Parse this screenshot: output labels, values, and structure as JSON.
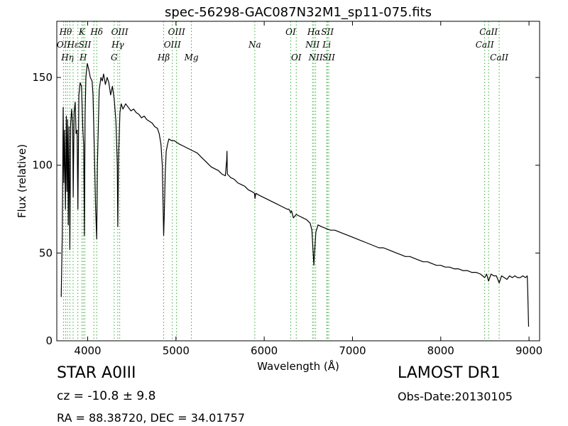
{
  "chart_data": {
    "type": "line",
    "title": "spec-56298-GAC087N32M1_sp11-075.fits",
    "xlabel": "Wavelength (Å)",
    "ylabel": "Flux (relative)",
    "xlim": [
      3650,
      9120
    ],
    "ylim": [
      0,
      182
    ],
    "xticks": [
      4000,
      5000,
      6000,
      7000,
      8000,
      9000
    ],
    "yticks": [
      0,
      50,
      100,
      150
    ],
    "grid": false,
    "line_color": "#000000",
    "marker_color": "#33aa33",
    "series": [
      {
        "values": [
          [
            3700,
            25
          ],
          [
            3712,
            60
          ],
          [
            3722,
            133
          ],
          [
            3730,
            90
          ],
          [
            3738,
            120
          ],
          [
            3748,
            75
          ],
          [
            3758,
            128
          ],
          [
            3765,
            85
          ],
          [
            3772,
            126
          ],
          [
            3780,
            66
          ],
          [
            3788,
            122
          ],
          [
            3798,
            52
          ],
          [
            3808,
            124
          ],
          [
            3818,
            132
          ],
          [
            3830,
            122
          ],
          [
            3836,
            82
          ],
          [
            3846,
            130
          ],
          [
            3858,
            136
          ],
          [
            3868,
            118
          ],
          [
            3880,
            120
          ],
          [
            3889,
            75
          ],
          [
            3900,
            140
          ],
          [
            3915,
            147
          ],
          [
            3930,
            145
          ],
          [
            3945,
            120
          ],
          [
            3955,
            112
          ],
          [
            3963,
            60
          ],
          [
            3970,
            128
          ],
          [
            3980,
            150
          ],
          [
            3995,
            158
          ],
          [
            4010,
            155
          ],
          [
            4030,
            150
          ],
          [
            4050,
            148
          ],
          [
            4060,
            140
          ],
          [
            4075,
            110
          ],
          [
            4090,
            75
          ],
          [
            4102,
            58
          ],
          [
            4110,
            100
          ],
          [
            4130,
            143
          ],
          [
            4150,
            150
          ],
          [
            4165,
            148
          ],
          [
            4180,
            152
          ],
          [
            4200,
            146
          ],
          [
            4220,
            150
          ],
          [
            4240,
            147
          ],
          [
            4260,
            140
          ],
          [
            4280,
            145
          ],
          [
            4300,
            138
          ],
          [
            4320,
            125
          ],
          [
            4335,
            100
          ],
          [
            4341,
            65
          ],
          [
            4350,
            105
          ],
          [
            4365,
            130
          ],
          [
            4380,
            135
          ],
          [
            4400,
            132
          ],
          [
            4430,
            135
          ],
          [
            4460,
            133
          ],
          [
            4490,
            131
          ],
          [
            4520,
            132
          ],
          [
            4550,
            130
          ],
          [
            4580,
            129
          ],
          [
            4610,
            127
          ],
          [
            4640,
            128
          ],
          [
            4670,
            126
          ],
          [
            4700,
            125
          ],
          [
            4730,
            124
          ],
          [
            4760,
            122
          ],
          [
            4790,
            121
          ],
          [
            4810,
            118
          ],
          [
            4830,
            112
          ],
          [
            4845,
            100
          ],
          [
            4855,
            75
          ],
          [
            4861,
            60
          ],
          [
            4868,
            72
          ],
          [
            4878,
            95
          ],
          [
            4890,
            108
          ],
          [
            4905,
            112
          ],
          [
            4920,
            115
          ],
          [
            4950,
            114
          ],
          [
            4980,
            114
          ],
          [
            5010,
            113
          ],
          [
            5040,
            112
          ],
          [
            5080,
            111
          ],
          [
            5120,
            110
          ],
          [
            5160,
            109
          ],
          [
            5200,
            108
          ],
          [
            5240,
            107
          ],
          [
            5280,
            105
          ],
          [
            5320,
            103
          ],
          [
            5360,
            101
          ],
          [
            5400,
            99
          ],
          [
            5440,
            98
          ],
          [
            5480,
            97
          ],
          [
            5520,
            95
          ],
          [
            5560,
            94
          ],
          [
            5575,
            103
          ],
          [
            5578,
            108
          ],
          [
            5582,
            95
          ],
          [
            5620,
            93
          ],
          [
            5660,
            92
          ],
          [
            5700,
            90
          ],
          [
            5740,
            89
          ],
          [
            5780,
            88
          ],
          [
            5820,
            86
          ],
          [
            5860,
            85
          ],
          [
            5890,
            84
          ],
          [
            5895,
            81
          ],
          [
            5905,
            84
          ],
          [
            5940,
            83
          ],
          [
            5980,
            82
          ],
          [
            6020,
            81
          ],
          [
            6060,
            80
          ],
          [
            6100,
            79
          ],
          [
            6140,
            78
          ],
          [
            6180,
            77
          ],
          [
            6220,
            76
          ],
          [
            6260,
            75
          ],
          [
            6280,
            75
          ],
          [
            6300,
            73
          ],
          [
            6310,
            74
          ],
          [
            6330,
            70
          ],
          [
            6363,
            72
          ],
          [
            6400,
            71
          ],
          [
            6440,
            70
          ],
          [
            6480,
            69
          ],
          [
            6520,
            67
          ],
          [
            6540,
            63
          ],
          [
            6555,
            50
          ],
          [
            6563,
            43
          ],
          [
            6570,
            50
          ],
          [
            6585,
            62
          ],
          [
            6610,
            66
          ],
          [
            6650,
            65
          ],
          [
            6700,
            64
          ],
          [
            6750,
            63
          ],
          [
            6800,
            63
          ],
          [
            6850,
            62
          ],
          [
            6900,
            61
          ],
          [
            6950,
            60
          ],
          [
            7000,
            59
          ],
          [
            7050,
            58
          ],
          [
            7100,
            57
          ],
          [
            7150,
            56
          ],
          [
            7200,
            55
          ],
          [
            7250,
            54
          ],
          [
            7300,
            53
          ],
          [
            7350,
            53
          ],
          [
            7400,
            52
          ],
          [
            7450,
            51
          ],
          [
            7500,
            50
          ],
          [
            7550,
            49
          ],
          [
            7600,
            48
          ],
          [
            7650,
            48
          ],
          [
            7700,
            47
          ],
          [
            7750,
            46
          ],
          [
            7800,
            45
          ],
          [
            7850,
            45
          ],
          [
            7900,
            44
          ],
          [
            7950,
            43
          ],
          [
            8000,
            43
          ],
          [
            8050,
            42
          ],
          [
            8100,
            42
          ],
          [
            8150,
            41
          ],
          [
            8200,
            41
          ],
          [
            8250,
            40
          ],
          [
            8300,
            40
          ],
          [
            8350,
            39
          ],
          [
            8400,
            39
          ],
          [
            8450,
            38
          ],
          [
            8498,
            36
          ],
          [
            8520,
            38
          ],
          [
            8542,
            34
          ],
          [
            8570,
            38
          ],
          [
            8600,
            37
          ],
          [
            8630,
            37
          ],
          [
            8662,
            33
          ],
          [
            8690,
            37
          ],
          [
            8720,
            36
          ],
          [
            8750,
            35
          ],
          [
            8780,
            37
          ],
          [
            8810,
            36
          ],
          [
            8840,
            37
          ],
          [
            8870,
            36
          ],
          [
            8900,
            36
          ],
          [
            8930,
            37
          ],
          [
            8960,
            36
          ],
          [
            8980,
            37
          ],
          [
            8985,
            30
          ],
          [
            8990,
            20
          ],
          [
            8995,
            8
          ]
        ]
      }
    ],
    "line_markers": [
      {
        "wl": 3727,
        "label": "OII",
        "row": 2
      },
      {
        "wl": 3750,
        "label": "Hθ",
        "row": 1
      },
      {
        "wl": 3771,
        "label": "Hη",
        "row": 3
      },
      {
        "wl": 3798,
        "label": "",
        "row": 0
      },
      {
        "wl": 3835,
        "label": "Hε",
        "row": 2
      },
      {
        "wl": 3889,
        "label": "",
        "row": 0
      },
      {
        "wl": 3934,
        "label": "K",
        "row": 1
      },
      {
        "wl": 3950,
        "label": "H",
        "row": 3
      },
      {
        "wl": 3968,
        "label": "SII",
        "row": 2
      },
      {
        "wl": 4070,
        "label": "",
        "row": 0
      },
      {
        "wl": 4102,
        "label": "Hδ",
        "row": 1
      },
      {
        "wl": 4300,
        "label": "G",
        "row": 3
      },
      {
        "wl": 4341,
        "label": "Hγ",
        "row": 2
      },
      {
        "wl": 4363,
        "label": "OIII",
        "row": 1
      },
      {
        "wl": 4861,
        "label": "Hβ",
        "row": 3
      },
      {
        "wl": 4959,
        "label": "OIII",
        "row": 2
      },
      {
        "wl": 5007,
        "label": "OIII",
        "row": 1
      },
      {
        "wl": 5175,
        "label": "Mg",
        "row": 3
      },
      {
        "wl": 5893,
        "label": "Na",
        "row": 2
      },
      {
        "wl": 6300,
        "label": "OI",
        "row": 1
      },
      {
        "wl": 6363,
        "label": "OI",
        "row": 3
      },
      {
        "wl": 6548,
        "label": "NII",
        "row": 2
      },
      {
        "wl": 6563,
        "label": "Hα",
        "row": 1
      },
      {
        "wl": 6583,
        "label": "NII",
        "row": 3
      },
      {
        "wl": 6708,
        "label": "Li",
        "row": 2
      },
      {
        "wl": 6716,
        "label": "SII",
        "row": 1
      },
      {
        "wl": 6731,
        "label": "SII",
        "row": 3
      },
      {
        "wl": 8498,
        "label": "CaII",
        "row": 2
      },
      {
        "wl": 8542,
        "label": "CaII",
        "row": 1
      },
      {
        "wl": 8662,
        "label": "CaII",
        "row": 3
      }
    ]
  },
  "info": {
    "object_class": "STAR   A0III",
    "cz": "cz = -10.8 ± 9.8",
    "radec": "RA = 88.38720, DEC = 34.01757",
    "survey": "LAMOST DR1",
    "obs_date": "Obs-Date:20130105"
  }
}
